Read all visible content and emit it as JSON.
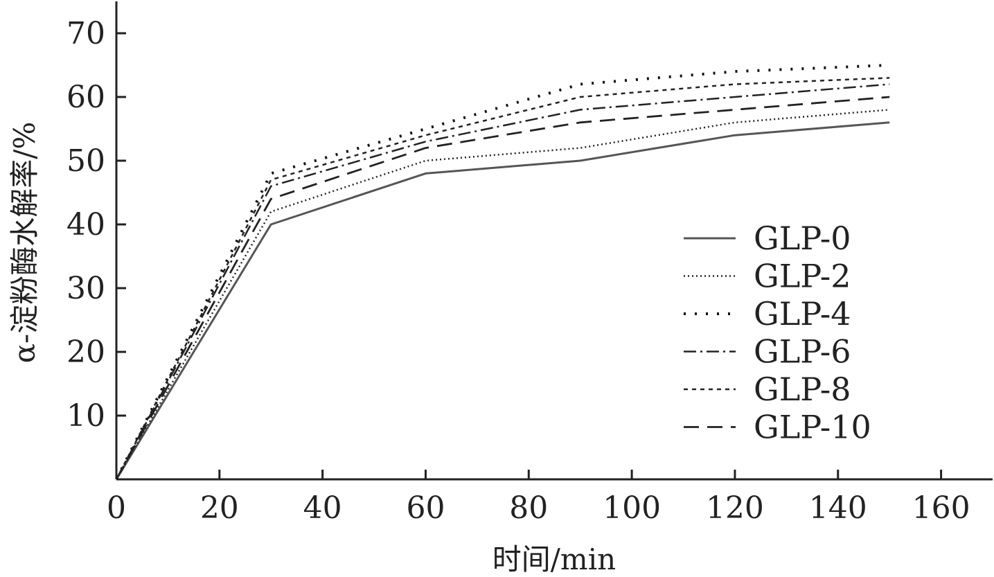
{
  "chart_data": {
    "type": "line",
    "xlabel": "时间/min",
    "ylabel": "α-淀粉酶水解率/%",
    "xlim": [
      0,
      170
    ],
    "ylim": [
      0,
      75
    ],
    "xticks": [
      0,
      20,
      40,
      60,
      80,
      100,
      120,
      140,
      160
    ],
    "yticks": [
      10,
      20,
      30,
      40,
      50,
      60,
      70
    ],
    "x": [
      0,
      30,
      60,
      90,
      120,
      150
    ],
    "legend_position": "right-middle",
    "grid": false,
    "series": [
      {
        "name": "GLP-0",
        "values": [
          0,
          40,
          48,
          50,
          54,
          56
        ],
        "style": "solid"
      },
      {
        "name": "GLP-2",
        "values": [
          0,
          42,
          50,
          52,
          56,
          58
        ],
        "style": "dotted-fine"
      },
      {
        "name": "GLP-4",
        "values": [
          0,
          48,
          55,
          62,
          64,
          65
        ],
        "style": "dotted-sparse"
      },
      {
        "name": "GLP-6",
        "values": [
          0,
          46,
          53,
          58,
          60,
          62
        ],
        "style": "dash-dot"
      },
      {
        "name": "GLP-8",
        "values": [
          0,
          47,
          54,
          60,
          62,
          63
        ],
        "style": "short-dash"
      },
      {
        "name": "GLP-10",
        "values": [
          0,
          44,
          52,
          56,
          58,
          60
        ],
        "style": "long-dash"
      }
    ]
  }
}
